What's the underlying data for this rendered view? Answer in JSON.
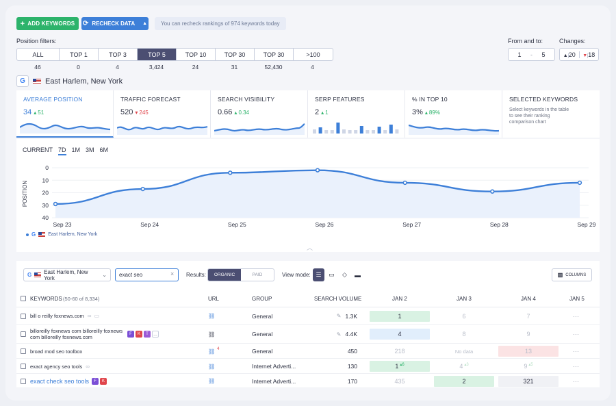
{
  "toolbar": {
    "add_keywords": "ADD KEYWORDS",
    "recheck_data": "RECHECK DATA",
    "recheck_note": "You can recheck rankings of 974 keywords today"
  },
  "position_filters": {
    "label": "Position filters:",
    "items": [
      {
        "label": "ALL",
        "count": "46",
        "active": false
      },
      {
        "label": "TOP 1",
        "count": "0",
        "active": false
      },
      {
        "label": "TOP 3",
        "count": "4",
        "active": false
      },
      {
        "label": "TOP 5",
        "count": "3,424",
        "active": true
      },
      {
        "label": "TOP 10",
        "count": "24",
        "active": false
      },
      {
        "label": "TOP 30",
        "count": "31",
        "active": false
      },
      {
        "label": "TOP 30",
        "count": "52,430",
        "active": false
      },
      {
        "label": ">100",
        "count": "4",
        "active": false
      }
    ]
  },
  "range": {
    "label": "From and to:",
    "from": "1",
    "sep": "-",
    "to": "5"
  },
  "changes": {
    "label": "Changes:",
    "up": "20",
    "down": "18"
  },
  "location": {
    "engine": "G",
    "name": "East Harlem, New York"
  },
  "metrics": [
    {
      "title": "AVERAGE POSITION",
      "value": "34",
      "delta": "51",
      "dir": "up"
    },
    {
      "title": "TRAFFIC FORECAST",
      "value": "520",
      "delta": "245",
      "dir": "down"
    },
    {
      "title": "SEARCH VISIBILITY",
      "value": "0.66",
      "delta": "0.34",
      "dir": "up"
    },
    {
      "title": "SERP FEATURES",
      "value": "2",
      "delta": "1",
      "dir": "up"
    },
    {
      "title": "% IN TOP 10",
      "value": "3%",
      "delta": "89%",
      "dir": "up"
    }
  ],
  "selected_keywords": {
    "title": "SELECTED KEYWORDS",
    "desc": "Select keywords in the table to see their ranking comparison chart"
  },
  "serp_bars": [
    0.35,
    0.5,
    0.3,
    0.25,
    0.9,
    0.35,
    0.3,
    0.25,
    0.6,
    0.3,
    0.3,
    0.55,
    0.3,
    0.7,
    0.35
  ],
  "chart_tabs": [
    "CURRENT",
    "7D",
    "1M",
    "3M",
    "6M"
  ],
  "chart_data": {
    "type": "area",
    "ylabel": "POSITION",
    "ylim": [
      0,
      40
    ],
    "y_reversed": true,
    "yticks": [
      "0",
      "10",
      "20",
      "30",
      "40"
    ],
    "categories": [
      "Sep 23",
      "Sep 24",
      "Sep 25",
      "Sep 26",
      "Sep 27",
      "Sep 28",
      "Sep 29"
    ],
    "series": [
      {
        "name": "East Harlem, New York",
        "values": [
          29,
          17,
          4,
          2,
          12,
          19,
          12
        ]
      }
    ],
    "color": "#3d7fd8"
  },
  "table_controls": {
    "location": "East Harlem, New York",
    "search_value": "exact seo",
    "results_label": "Results:",
    "organic": "ORGANIC",
    "paid": "PAID",
    "view_mode_label": "View mode:",
    "columns": "COLUMNS"
  },
  "table": {
    "headers": {
      "keywords": "KEYWORDS",
      "range": "(50-60 of 8,334)",
      "url": "URL",
      "group": "GROUP",
      "volume": "SEARCH VOLUME",
      "jan2": "JAN 2",
      "jan3": "JAN 3",
      "jan4": "JAN 4",
      "jan5": "JAN 5"
    },
    "rows": [
      {
        "kw": "bill o reilly foxnews.com",
        "url_extra": "",
        "group": "General",
        "volume": "1.3K",
        "jan2": "1",
        "jan2_delta": "",
        "jan3": "6",
        "jan3_delta": "",
        "jan4": "7",
        "jan4_delta": "",
        "jan5": "···"
      },
      {
        "kw": "billoreilly foxnews com billoreilly foxnews com billoreilly foxnews.com",
        "url_extra": "",
        "group": "General",
        "volume": "4.4K",
        "jan2": "4",
        "jan2_delta": "",
        "jan3": "8",
        "jan3_delta": "",
        "jan4": "9",
        "jan4_delta": "",
        "jan5": "···"
      },
      {
        "kw": "broad mod seo toolbox",
        "url_extra": "4",
        "group": "General",
        "volume": "450",
        "jan2": "218",
        "jan2_delta": "",
        "jan3": "No data",
        "jan3_delta": "",
        "jan4": "13",
        "jan4_delta": "",
        "jan5": "···"
      },
      {
        "kw": "exact agency seo tools",
        "url_extra": "",
        "group": "Internet Adverti...",
        "volume": "130",
        "jan2": "1",
        "jan2_delta": "6",
        "jan3": "4",
        "jan3_delta": "3",
        "jan4": "9",
        "jan4_delta": "5",
        "jan5": "···"
      },
      {
        "kw": "exact check seo tools",
        "url_extra": "",
        "group": "Internet Adverti...",
        "volume": "170",
        "jan2": "435",
        "jan2_delta": "",
        "jan3": "2",
        "jan3_delta": "",
        "jan4": "321",
        "jan4_delta": "",
        "jan5": "···"
      }
    ]
  },
  "colors": {
    "green": "#2db36b",
    "blue": "#3d7fd8",
    "dark_active": "#4b4e72",
    "red": "#e0454b"
  }
}
